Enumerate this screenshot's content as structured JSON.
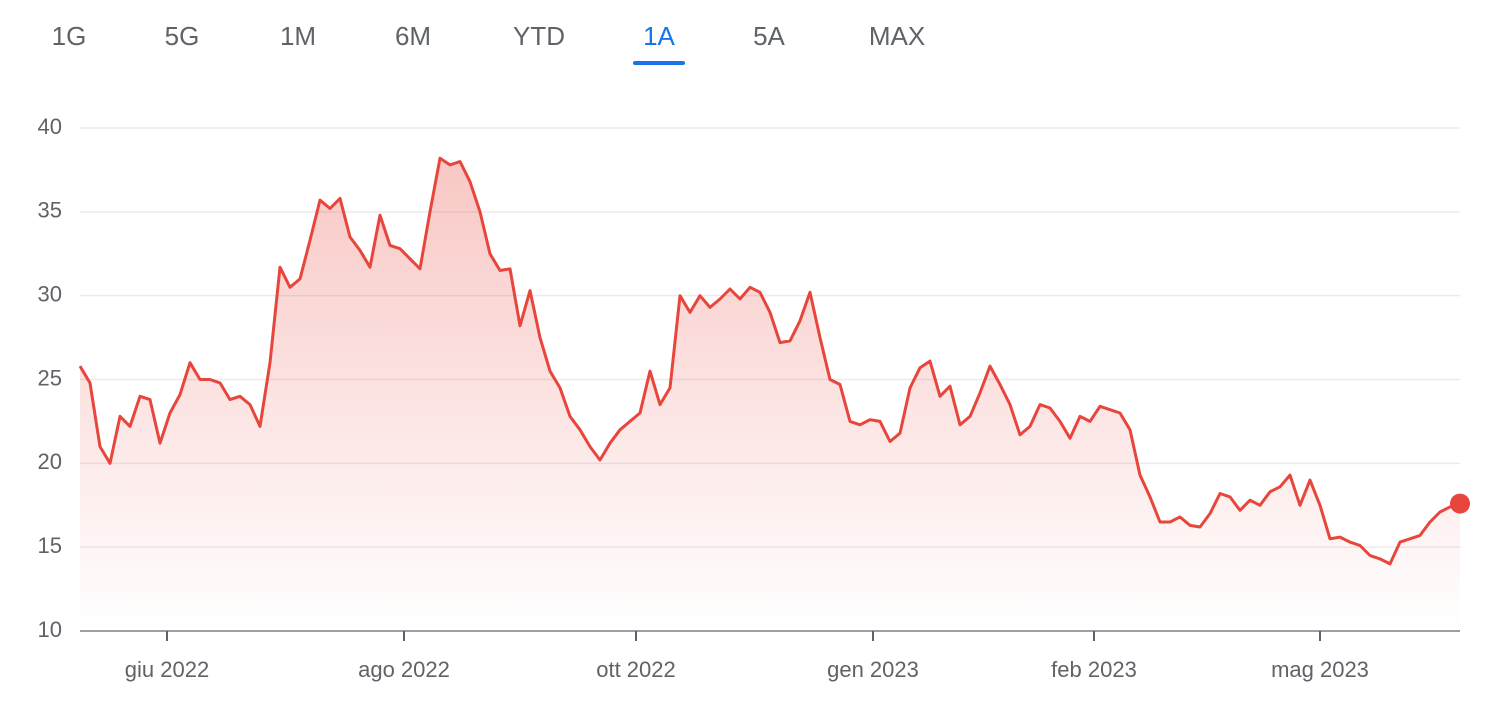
{
  "tabs": {
    "items": [
      "1G",
      "5G",
      "1M",
      "6M",
      "YTD",
      "1A",
      "5A",
      "MAX"
    ],
    "selected": 5
  },
  "chart_data": {
    "type": "area",
    "color": "#e8453c",
    "values": [
      25.8,
      24.8,
      21,
      20,
      22.8,
      22.2,
      24,
      23.8,
      21.2,
      23,
      24.1,
      26,
      25,
      25,
      24.8,
      23.8,
      24,
      23.5,
      22.2,
      26,
      31.7,
      30.5,
      31,
      33.3,
      35.7,
      35.2,
      35.8,
      33.5,
      32.7,
      31.7,
      34.8,
      33,
      32.8,
      32.2,
      31.6,
      35,
      38.2,
      37.8,
      38,
      36.8,
      35,
      32.5,
      31.5,
      31.6,
      28.2,
      30.3,
      27.5,
      25.5,
      24.5,
      22.8,
      22,
      21,
      20.2,
      21.2,
      22,
      22.5,
      23,
      25.5,
      23.5,
      24.5,
      30,
      29,
      30,
      29.3,
      29.8,
      30.4,
      29.8,
      30.5,
      30.2,
      29,
      27.2,
      27.3,
      28.5,
      30.2,
      27.5,
      25,
      24.7,
      22.5,
      22.3,
      22.6,
      22.5,
      21.3,
      21.8,
      24.5,
      25.7,
      26.1,
      24,
      24.6,
      22.3,
      22.8,
      24.2,
      25.8,
      24.7,
      23.5,
      21.7,
      22.2,
      23.5,
      23.3,
      22.5,
      21.5,
      22.8,
      22.5,
      23.4,
      23.2,
      23,
      22,
      19.3,
      18,
      16.5,
      16.5,
      16.8,
      16.3,
      16.2,
      17,
      18.2,
      18,
      17.2,
      17.8,
      17.5,
      18.3,
      18.6,
      19.3,
      17.5,
      19,
      17.5,
      15.5,
      15.6,
      15.3,
      15.1,
      14.5,
      14.3,
      14,
      15.3,
      15.5,
      15.7,
      16.5,
      17.1,
      17.4,
      17.6
    ],
    "xlim": [
      0,
      138
    ],
    "xticks": [
      {
        "value": 8.7,
        "label": "giu 2022"
      },
      {
        "value": 32.4,
        "label": "ago 2022"
      },
      {
        "value": 55.6,
        "label": "ott 2022"
      },
      {
        "value": 79.3,
        "label": "gen 2023"
      },
      {
        "value": 101.4,
        "label": "feb 2023"
      },
      {
        "value": 124,
        "label": "mag 2023"
      }
    ],
    "ylim": [
      10,
      40
    ],
    "yticks": [
      10,
      15,
      20,
      25,
      30,
      35,
      40
    ],
    "grid": true
  }
}
